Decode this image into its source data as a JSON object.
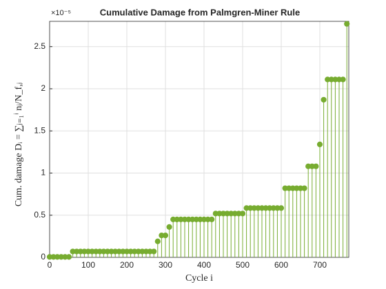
{
  "chart_data": {
    "type": "stem",
    "title": "Cumulative Damage from Palmgren-Miner Rule",
    "x_label": "Cycle i",
    "y_label": "Cum. damage Dᵢ = ∑ⱼ₌₁ⁱ nⱼ/N_f,ⱼ",
    "y_exponent_label": "×10⁻⁵",
    "x": [
      0,
      10,
      20,
      30,
      40,
      50,
      60,
      70,
      80,
      90,
      100,
      110,
      120,
      130,
      140,
      150,
      160,
      170,
      180,
      190,
      200,
      210,
      220,
      230,
      240,
      250,
      260,
      270,
      280,
      290,
      300,
      310,
      320,
      330,
      340,
      350,
      360,
      370,
      380,
      390,
      400,
      410,
      420,
      430,
      440,
      450,
      460,
      470,
      480,
      490,
      500,
      510,
      520,
      530,
      540,
      550,
      560,
      570,
      580,
      590,
      600,
      610,
      620,
      630,
      640,
      650,
      660,
      670,
      680,
      690,
      700,
      710,
      720,
      730,
      740,
      750,
      760,
      770
    ],
    "values": [
      0.005,
      0.005,
      0.005,
      0.005,
      0.005,
      0.005,
      0.07,
      0.07,
      0.07,
      0.07,
      0.07,
      0.07,
      0.07,
      0.07,
      0.07,
      0.07,
      0.07,
      0.07,
      0.07,
      0.07,
      0.07,
      0.07,
      0.07,
      0.07,
      0.07,
      0.07,
      0.07,
      0.07,
      0.19,
      0.26,
      0.26,
      0.36,
      0.45,
      0.45,
      0.45,
      0.45,
      0.45,
      0.45,
      0.45,
      0.45,
      0.45,
      0.45,
      0.45,
      0.52,
      0.52,
      0.52,
      0.52,
      0.52,
      0.52,
      0.52,
      0.52,
      0.585,
      0.585,
      0.585,
      0.585,
      0.585,
      0.585,
      0.585,
      0.585,
      0.585,
      0.585,
      0.82,
      0.82,
      0.82,
      0.82,
      0.82,
      0.82,
      1.08,
      1.08,
      1.08,
      1.34,
      1.87,
      2.11,
      2.11,
      2.11,
      2.11,
      2.11,
      2.77
    ],
    "color": "#77ac30",
    "xlim": [
      0,
      775
    ],
    "ylim": [
      0,
      2.8
    ],
    "xticks": [
      0,
      100,
      200,
      300,
      400,
      500,
      600,
      700
    ],
    "yticks": [
      0,
      0.5,
      1,
      1.5,
      2,
      2.5
    ],
    "grid": true
  }
}
